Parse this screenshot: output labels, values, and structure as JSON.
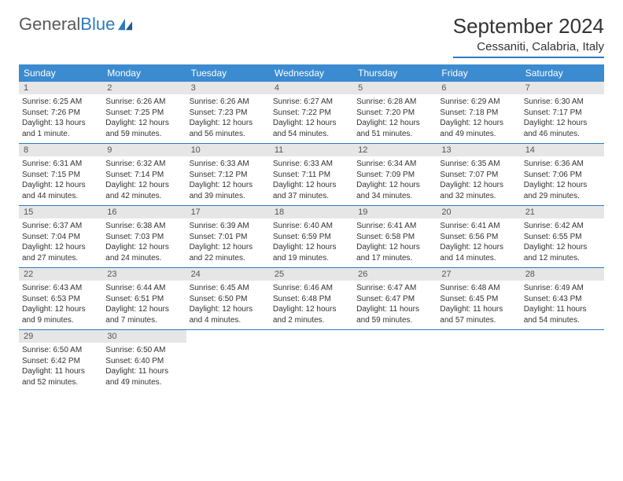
{
  "brand": {
    "text1": "General",
    "text2": "Blue",
    "color_general": "#5a5a5a",
    "color_blue": "#2e7ac0"
  },
  "title": "September 2024",
  "location": "Cessaniti, Calabria, Italy",
  "accent_color": "#3b8bd0",
  "underline_color": "#2e7ac0",
  "daynum_bg": "#e6e6e6",
  "day_headers": [
    "Sunday",
    "Monday",
    "Tuesday",
    "Wednesday",
    "Thursday",
    "Friday",
    "Saturday"
  ],
  "weeks": [
    [
      {
        "n": "1",
        "sunrise": "6:25 AM",
        "sunset": "7:26 PM",
        "daylight": "13 hours and 1 minute."
      },
      {
        "n": "2",
        "sunrise": "6:26 AM",
        "sunset": "7:25 PM",
        "daylight": "12 hours and 59 minutes."
      },
      {
        "n": "3",
        "sunrise": "6:26 AM",
        "sunset": "7:23 PM",
        "daylight": "12 hours and 56 minutes."
      },
      {
        "n": "4",
        "sunrise": "6:27 AM",
        "sunset": "7:22 PM",
        "daylight": "12 hours and 54 minutes."
      },
      {
        "n": "5",
        "sunrise": "6:28 AM",
        "sunset": "7:20 PM",
        "daylight": "12 hours and 51 minutes."
      },
      {
        "n": "6",
        "sunrise": "6:29 AM",
        "sunset": "7:18 PM",
        "daylight": "12 hours and 49 minutes."
      },
      {
        "n": "7",
        "sunrise": "6:30 AM",
        "sunset": "7:17 PM",
        "daylight": "12 hours and 46 minutes."
      }
    ],
    [
      {
        "n": "8",
        "sunrise": "6:31 AM",
        "sunset": "7:15 PM",
        "daylight": "12 hours and 44 minutes."
      },
      {
        "n": "9",
        "sunrise": "6:32 AM",
        "sunset": "7:14 PM",
        "daylight": "12 hours and 42 minutes."
      },
      {
        "n": "10",
        "sunrise": "6:33 AM",
        "sunset": "7:12 PM",
        "daylight": "12 hours and 39 minutes."
      },
      {
        "n": "11",
        "sunrise": "6:33 AM",
        "sunset": "7:11 PM",
        "daylight": "12 hours and 37 minutes."
      },
      {
        "n": "12",
        "sunrise": "6:34 AM",
        "sunset": "7:09 PM",
        "daylight": "12 hours and 34 minutes."
      },
      {
        "n": "13",
        "sunrise": "6:35 AM",
        "sunset": "7:07 PM",
        "daylight": "12 hours and 32 minutes."
      },
      {
        "n": "14",
        "sunrise": "6:36 AM",
        "sunset": "7:06 PM",
        "daylight": "12 hours and 29 minutes."
      }
    ],
    [
      {
        "n": "15",
        "sunrise": "6:37 AM",
        "sunset": "7:04 PM",
        "daylight": "12 hours and 27 minutes."
      },
      {
        "n": "16",
        "sunrise": "6:38 AM",
        "sunset": "7:03 PM",
        "daylight": "12 hours and 24 minutes."
      },
      {
        "n": "17",
        "sunrise": "6:39 AM",
        "sunset": "7:01 PM",
        "daylight": "12 hours and 22 minutes."
      },
      {
        "n": "18",
        "sunrise": "6:40 AM",
        "sunset": "6:59 PM",
        "daylight": "12 hours and 19 minutes."
      },
      {
        "n": "19",
        "sunrise": "6:41 AM",
        "sunset": "6:58 PM",
        "daylight": "12 hours and 17 minutes."
      },
      {
        "n": "20",
        "sunrise": "6:41 AM",
        "sunset": "6:56 PM",
        "daylight": "12 hours and 14 minutes."
      },
      {
        "n": "21",
        "sunrise": "6:42 AM",
        "sunset": "6:55 PM",
        "daylight": "12 hours and 12 minutes."
      }
    ],
    [
      {
        "n": "22",
        "sunrise": "6:43 AM",
        "sunset": "6:53 PM",
        "daylight": "12 hours and 9 minutes."
      },
      {
        "n": "23",
        "sunrise": "6:44 AM",
        "sunset": "6:51 PM",
        "daylight": "12 hours and 7 minutes."
      },
      {
        "n": "24",
        "sunrise": "6:45 AM",
        "sunset": "6:50 PM",
        "daylight": "12 hours and 4 minutes."
      },
      {
        "n": "25",
        "sunrise": "6:46 AM",
        "sunset": "6:48 PM",
        "daylight": "12 hours and 2 minutes."
      },
      {
        "n": "26",
        "sunrise": "6:47 AM",
        "sunset": "6:47 PM",
        "daylight": "11 hours and 59 minutes."
      },
      {
        "n": "27",
        "sunrise": "6:48 AM",
        "sunset": "6:45 PM",
        "daylight": "11 hours and 57 minutes."
      },
      {
        "n": "28",
        "sunrise": "6:49 AM",
        "sunset": "6:43 PM",
        "daylight": "11 hours and 54 minutes."
      }
    ],
    [
      {
        "n": "29",
        "sunrise": "6:50 AM",
        "sunset": "6:42 PM",
        "daylight": "11 hours and 52 minutes."
      },
      {
        "n": "30",
        "sunrise": "6:50 AM",
        "sunset": "6:40 PM",
        "daylight": "11 hours and 49 minutes."
      },
      {
        "empty": true
      },
      {
        "empty": true
      },
      {
        "empty": true
      },
      {
        "empty": true
      },
      {
        "empty": true
      }
    ]
  ],
  "labels": {
    "sunrise": "Sunrise:",
    "sunset": "Sunset:",
    "daylight": "Daylight:"
  }
}
